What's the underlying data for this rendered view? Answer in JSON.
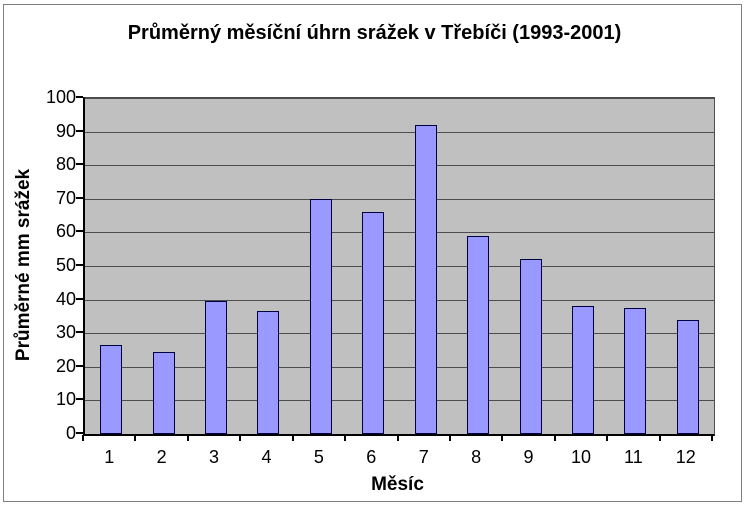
{
  "chart_data": {
    "type": "bar",
    "title": "Průměrný měsíční úhrn srážek v Třebíči (1993-2001)",
    "xlabel": "Měsíc",
    "ylabel": "Průměrné mm srážek",
    "categories": [
      "1",
      "2",
      "3",
      "4",
      "5",
      "6",
      "7",
      "8",
      "9",
      "10",
      "11",
      "12"
    ],
    "values": [
      26.5,
      24.5,
      39.5,
      36.5,
      70,
      66,
      92,
      59,
      52,
      38,
      37.5,
      34
    ],
    "ylim": [
      0,
      100
    ],
    "yticks": [
      0,
      10,
      20,
      30,
      40,
      50,
      60,
      70,
      80,
      90,
      100
    ],
    "grid": true,
    "legend": "none",
    "colors": {
      "bar_fill": "#9999FF",
      "bar_border": "#000040",
      "plot_bg": "#C0C0C0",
      "gridline": "#4d4d4d",
      "axis": "#000000",
      "frame_border": "#808080",
      "text": "#000000",
      "background": "#FFFFFF"
    }
  }
}
